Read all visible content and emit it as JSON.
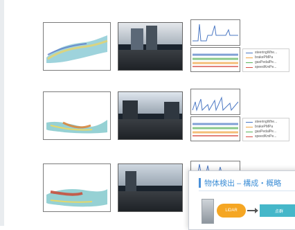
{
  "rows": [
    {
      "id": "row-1",
      "legend": [
        "steeringWhe...",
        "brakePMPa",
        "gasPedalPe...",
        "speedKmPe..."
      ]
    },
    {
      "id": "row-2",
      "legend": [
        "steeringWhe...",
        "brakePMPa",
        "gasPedalPe...",
        "speedKmPe..."
      ]
    },
    {
      "id": "row-3"
    }
  ],
  "slide": {
    "title": "物体検出 – 構成・概略",
    "lidar_label": "LiDAR",
    "process_label": "点群"
  },
  "colors": {
    "series": [
      "#4a77c3",
      "#f0a340",
      "#59b25a",
      "#d74b43"
    ],
    "accent": "#3f8fd6"
  }
}
